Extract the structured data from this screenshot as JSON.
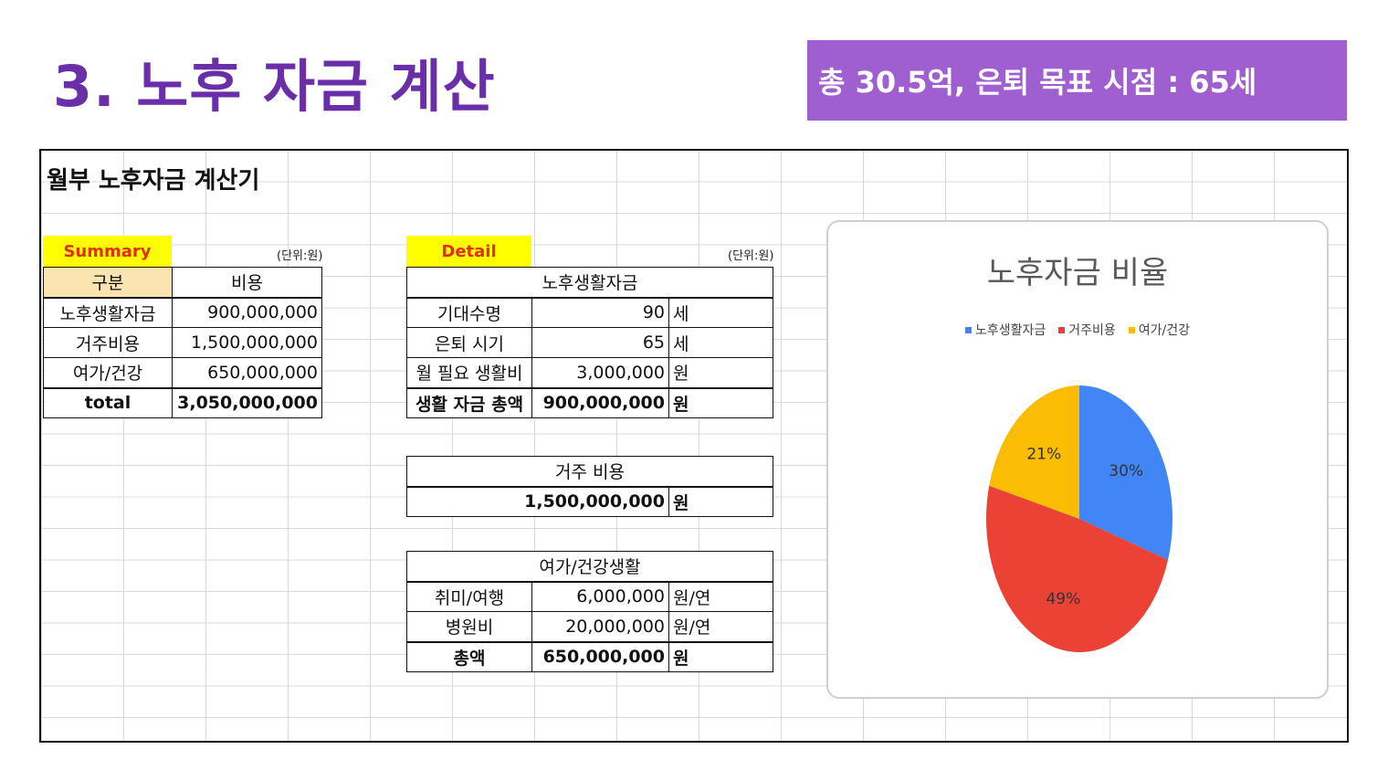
{
  "slide": {
    "title": "3. 노후 자금 계산",
    "banner": "총 30.5억, 은퇴 목표 시점  : 65세"
  },
  "sheet": {
    "title": "월부 노후자금 계산기",
    "summary": {
      "tag": "Summary",
      "unit": "(단위:원)",
      "headers": [
        "구분",
        "비용"
      ],
      "rows": [
        {
          "label": "노후생활자금",
          "value": "900,000,000"
        },
        {
          "label": "거주비용",
          "value": "1,500,000,000"
        },
        {
          "label": "여가/건강",
          "value": "650,000,000"
        }
      ],
      "total_label": "total",
      "total_value": "3,050,000,000"
    },
    "detail": {
      "tag": "Detail",
      "unit": "(단위:원)",
      "living": {
        "header": "노후생활자금",
        "rows": [
          {
            "label": "기대수명",
            "value": "90",
            "unit": "세"
          },
          {
            "label": "은퇴 시기",
            "value": "65",
            "unit": "세"
          },
          {
            "label": "월 필요 생활비",
            "value": "3,000,000",
            "unit": "원"
          }
        ],
        "total": {
          "label": "생활 자금 총액",
          "value": "900,000,000",
          "unit": "원"
        }
      },
      "housing": {
        "header": "거주 비용",
        "value": "1,500,000,000",
        "unit": "원"
      },
      "leisure": {
        "header": "여가/건강생활",
        "rows": [
          {
            "label": "취미/여행",
            "value": "6,000,000",
            "unit": "원/연"
          },
          {
            "label": "병원비",
            "value": "20,000,000",
            "unit": "원/연"
          }
        ],
        "total": {
          "label": "총액",
          "value": "650,000,000",
          "unit": "원"
        }
      }
    }
  },
  "chart_data": {
    "type": "pie",
    "title": "노후자금 비율",
    "categories": [
      "노후생활자금",
      "거주비용",
      "여가/건강"
    ],
    "values": [
      30,
      49,
      21
    ],
    "labels": [
      "30%",
      "49%",
      "21%"
    ],
    "colors": [
      "#4285f4",
      "#ea4335",
      "#fbbc04"
    ],
    "legend": "top"
  }
}
